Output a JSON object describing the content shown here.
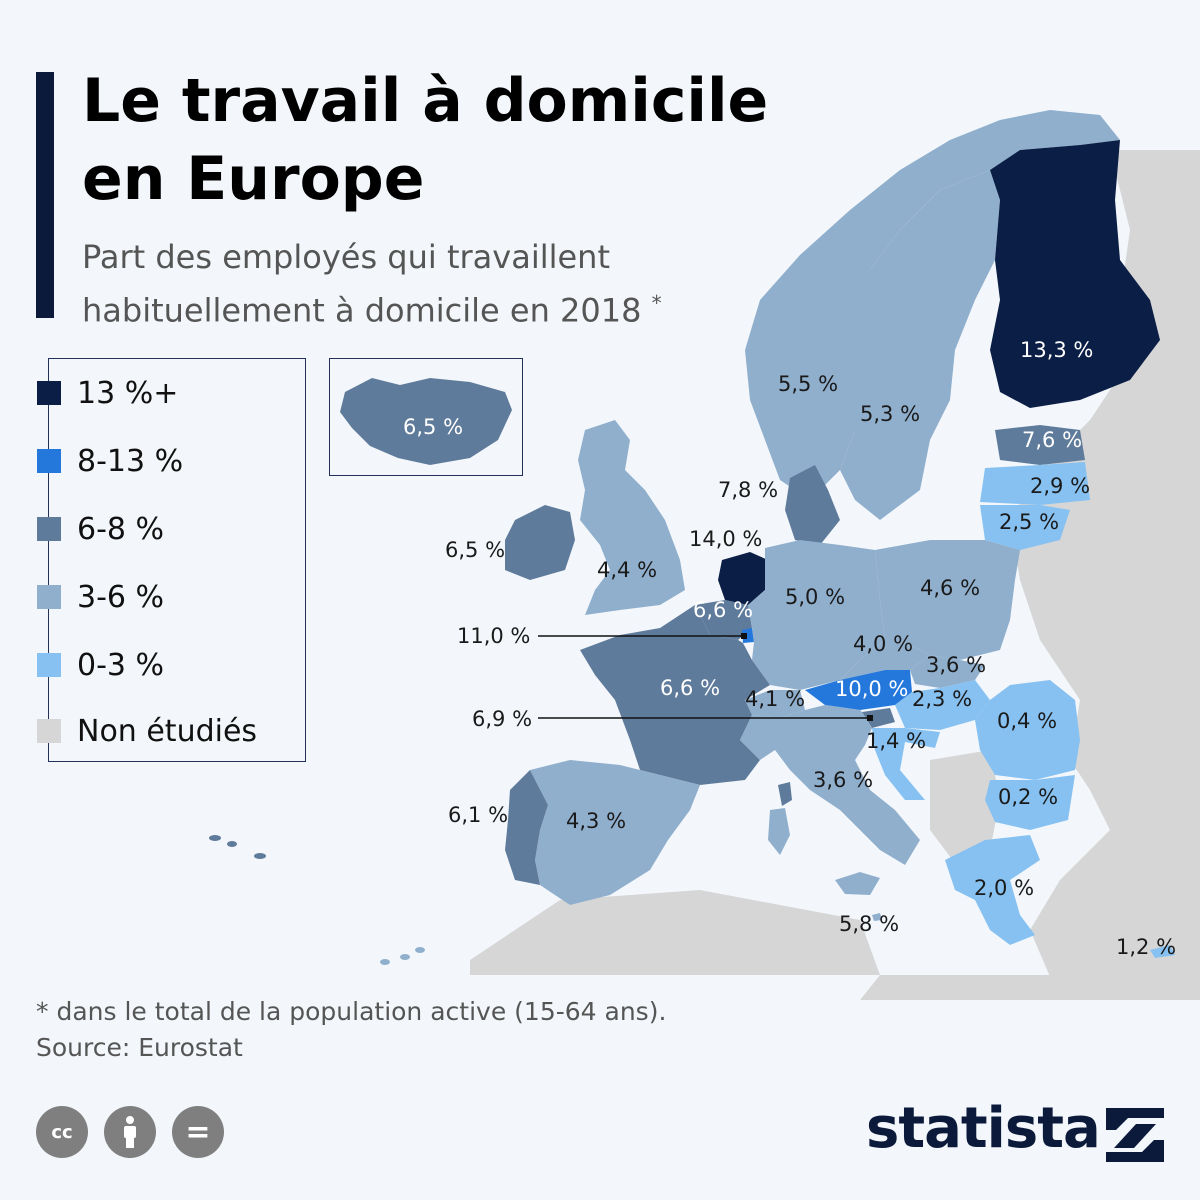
{
  "title": "Le travail à domicile en Europe",
  "subtitle": "Part des employés qui travaillent habituellement à domicile en 2018",
  "subtitle_marker": "*",
  "legend": [
    {
      "label": "13 %+",
      "color": "#0b1e45"
    },
    {
      "label": "8-13 %",
      "color": "#2478dc"
    },
    {
      "label": "6-8 %",
      "color": "#5f7b9b"
    },
    {
      "label": "3-6 %",
      "color": "#8fafcd"
    },
    {
      "label": "0-3 %",
      "color": "#86c1f1"
    },
    {
      "label": "Non étudiés",
      "color": "#d6d6d6"
    }
  ],
  "countries": [
    {
      "name": "Finland",
      "value": "13,3 %",
      "class": "13 %+"
    },
    {
      "name": "Norway",
      "value": "5,5 %",
      "class": "3-6 %"
    },
    {
      "name": "Sweden",
      "value": "5,3 %",
      "class": "3-6 %"
    },
    {
      "name": "Iceland",
      "value": "6,5 %",
      "class": "6-8 %"
    },
    {
      "name": "Estonia",
      "value": "7,6 %",
      "class": "6-8 %"
    },
    {
      "name": "Latvia",
      "value": "2,9 %",
      "class": "0-3 %"
    },
    {
      "name": "Lithuania",
      "value": "2,5 %",
      "class": "0-3 %"
    },
    {
      "name": "Denmark",
      "value": "7,8 %",
      "class": "6-8 %"
    },
    {
      "name": "Ireland",
      "value": "6,5 %",
      "class": "6-8 %"
    },
    {
      "name": "United Kingdom",
      "value": "4,4 %",
      "class": "3-6 %"
    },
    {
      "name": "Netherlands",
      "value": "14,0 %",
      "class": "13 %+"
    },
    {
      "name": "Belgium",
      "value": "6,6 %",
      "class": "6-8 %"
    },
    {
      "name": "Luxembourg",
      "value": "11,0 %",
      "class": "8-13 %"
    },
    {
      "name": "Germany",
      "value": "5,0 %",
      "class": "3-6 %"
    },
    {
      "name": "Poland",
      "value": "4,6 %",
      "class": "3-6 %"
    },
    {
      "name": "Czechia",
      "value": "4,0 %",
      "class": "3-6 %"
    },
    {
      "name": "Slovakia",
      "value": "3,6 %",
      "class": "3-6 %"
    },
    {
      "name": "Austria",
      "value": "10,0 %",
      "class": "8-13 %"
    },
    {
      "name": "Hungary",
      "value": "2,3 %",
      "class": "0-3 %"
    },
    {
      "name": "Slovenia",
      "value": "6,9 %",
      "class": "6-8 %"
    },
    {
      "name": "Croatia",
      "value": "1,4 %",
      "class": "0-3 %"
    },
    {
      "name": "Switzerland",
      "value": "4,1 %",
      "class": "3-6 %"
    },
    {
      "name": "France",
      "value": "6,6 %",
      "class": "6-8 %"
    },
    {
      "name": "Italy",
      "value": "3,6 %",
      "class": "3-6 %"
    },
    {
      "name": "Malta",
      "value": "5,8 %",
      "class": "3-6 %"
    },
    {
      "name": "Romania",
      "value": "0,4 %",
      "class": "0-3 %"
    },
    {
      "name": "Bulgaria",
      "value": "0,2 %",
      "class": "0-3 %"
    },
    {
      "name": "Greece",
      "value": "2,0 %",
      "class": "0-3 %"
    },
    {
      "name": "Cyprus",
      "value": "1,2 %",
      "class": "0-3 %"
    },
    {
      "name": "Portugal",
      "value": "6,1 %",
      "class": "6-8 %"
    },
    {
      "name": "Spain",
      "value": "4,3 %",
      "class": "3-6 %"
    }
  ],
  "footnote": "* dans le total de la population active (15-64 ans).",
  "source": "Source: Eurostat",
  "license_icons": [
    "creative-commons-icon",
    "attribution-icon",
    "no-derivatives-icon"
  ],
  "license_labels": {
    "cc": "cc",
    "nd": "="
  },
  "brand": "statista"
}
